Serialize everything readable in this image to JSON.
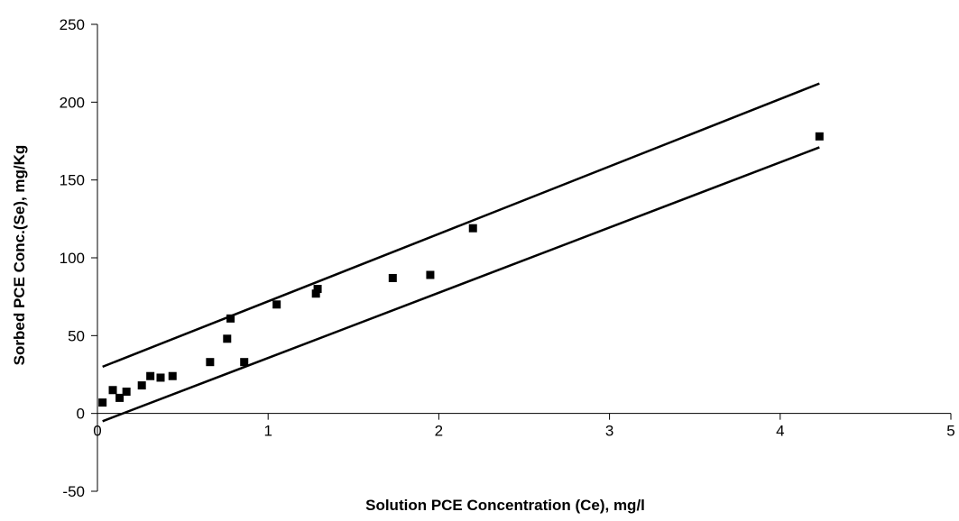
{
  "chart_data": {
    "type": "scatter",
    "title": "",
    "xlabel": "Solution PCE Concentration (Ce), mg/l",
    "ylabel": "Sorbed PCE Conc.(Se),  mg/Kg",
    "xlim": [
      0,
      5
    ],
    "ylim": [
      -50,
      250
    ],
    "x_ticks": [
      "0",
      "1",
      "2",
      "3",
      "4",
      "5"
    ],
    "y_ticks": [
      "-50",
      "0",
      "50",
      "100",
      "150",
      "200",
      "250"
    ],
    "grid": false,
    "legend": "none",
    "series": [
      {
        "marker": "square",
        "color": "#000000",
        "points": [
          {
            "x": 0.03,
            "y": 7
          },
          {
            "x": 0.09,
            "y": 15
          },
          {
            "x": 0.13,
            "y": 10
          },
          {
            "x": 0.17,
            "y": 14
          },
          {
            "x": 0.26,
            "y": 18
          },
          {
            "x": 0.31,
            "y": 24
          },
          {
            "x": 0.37,
            "y": 23
          },
          {
            "x": 0.44,
            "y": 24
          },
          {
            "x": 0.66,
            "y": 33
          },
          {
            "x": 0.76,
            "y": 48
          },
          {
            "x": 0.78,
            "y": 61
          },
          {
            "x": 0.86,
            "y": 33
          },
          {
            "x": 1.05,
            "y": 70
          },
          {
            "x": 1.28,
            "y": 77
          },
          {
            "x": 1.29,
            "y": 80
          },
          {
            "x": 1.73,
            "y": 87
          },
          {
            "x": 1.95,
            "y": 89
          },
          {
            "x": 2.2,
            "y": 119
          },
          {
            "x": 4.23,
            "y": 178
          }
        ]
      }
    ],
    "lines": [
      {
        "x": [
          0.03,
          4.23
        ],
        "y": [
          30,
          212
        ],
        "color": "#000000"
      },
      {
        "x": [
          0.03,
          4.23
        ],
        "y": [
          -5,
          171
        ],
        "color": "#000000"
      }
    ]
  }
}
